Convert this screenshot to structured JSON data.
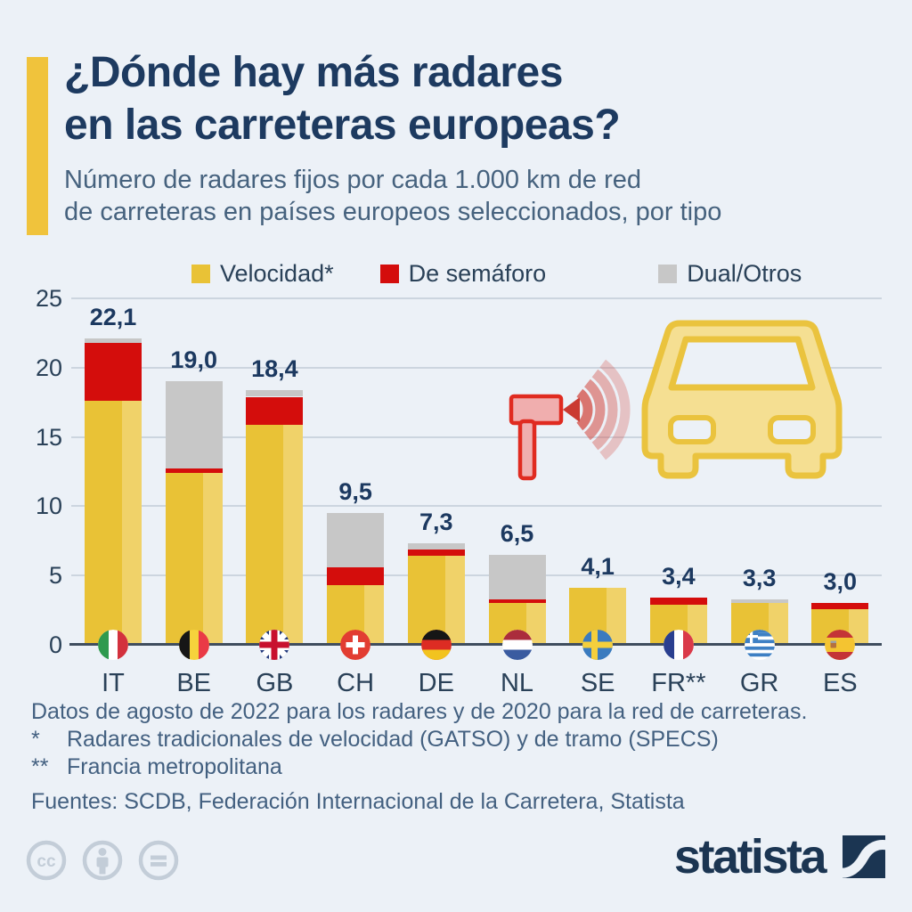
{
  "header": {
    "title_line1": "¿Dónde hay más radares",
    "title_line2": "en las carreteras europeas?",
    "subtitle_line1": "Número de radares fijos por cada 1.000 km de red",
    "subtitle_line2": "de carreteras en países europeos seleccionados, por tipo"
  },
  "colors": {
    "background": "#ecf1f7",
    "accent_yellow": "#f0c33c",
    "title_navy": "#1d3a60",
    "speed_yellow": "#e9c236",
    "traffic_light_red": "#d40d0c",
    "dual_gray": "#c7c7c7",
    "gridline": "#ccd5df",
    "axis": "#3f4d5e"
  },
  "legend": {
    "items": [
      {
        "label": "Velocidad*",
        "color": "#e9c236"
      },
      {
        "label": "De semáforo",
        "color": "#d40d0c"
      },
      {
        "label": "Dual/Otros",
        "color": "#c7c7c7"
      }
    ]
  },
  "chart_data": {
    "type": "bar",
    "stacked": true,
    "title": "Número de radares fijos por cada 1.000 km de red de carreteras en países europeos seleccionados, por tipo",
    "categories": [
      "IT",
      "BE",
      "GB",
      "CH",
      "DE",
      "NL",
      "SE",
      "FR**",
      "GR",
      "ES"
    ],
    "country_codes": [
      "IT",
      "BE",
      "GB",
      "CH",
      "DE",
      "NL",
      "SE",
      "FR",
      "GR",
      "ES"
    ],
    "series": [
      {
        "name": "Velocidad*",
        "color": "#e9c236",
        "values": [
          17.6,
          12.4,
          15.9,
          4.3,
          6.4,
          3.0,
          4.1,
          2.9,
          3.05,
          2.6
        ]
      },
      {
        "name": "De semáforo",
        "color": "#d40d0c",
        "values": [
          4.2,
          0.35,
          2.0,
          1.3,
          0.5,
          0.25,
          0,
          0.5,
          0,
          0.4
        ]
      },
      {
        "name": "Dual/Otros",
        "color": "#c7c7c7",
        "values": [
          0.3,
          6.25,
          0.5,
          3.9,
          0.4,
          3.25,
          0,
          0,
          0.25,
          0
        ]
      }
    ],
    "totals": [
      22.1,
      19.0,
      18.4,
      9.5,
      7.3,
      6.5,
      4.1,
      3.4,
      3.3,
      3.0
    ],
    "total_labels": [
      "22,1",
      "19,0",
      "18,4",
      "9,5",
      "7,3",
      "6,5",
      "4,1",
      "3,4",
      "3,3",
      "3,0"
    ],
    "y_ticks": [
      0,
      5,
      10,
      15,
      20,
      25
    ],
    "ylim": [
      0,
      25
    ],
    "grid": true,
    "legend_position": "top",
    "xlabel": "",
    "ylabel": ""
  },
  "footnotes": {
    "line1": "Datos de agosto de 2022 para los radares y de 2020 para la red de carreteras.",
    "note1_marker": "*",
    "note1_text": "Radares tradicionales de velocidad (GATSO) y de tramo (SPECS)",
    "note2_marker": "**",
    "note2_text": "Francia metropolitana",
    "sources": "Fuentes: SCDB, Federación Internacional de la Carretera, Statista"
  },
  "footer": {
    "brand": "statista",
    "license_icons": [
      "cc-icon",
      "attribution-icon",
      "no-derivatives-icon"
    ]
  }
}
